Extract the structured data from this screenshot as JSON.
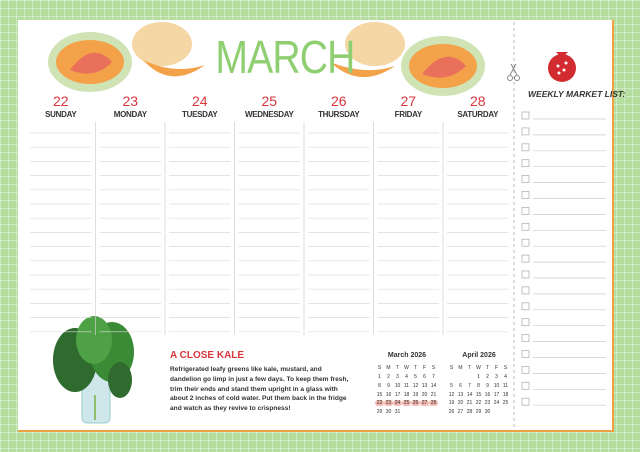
{
  "header": {
    "title": "MARCH"
  },
  "days": [
    {
      "date": 22,
      "name": "SUNDAY"
    },
    {
      "date": 23,
      "name": "MONDAY"
    },
    {
      "date": 24,
      "name": "TUESDAY"
    },
    {
      "date": 25,
      "name": "WEDNESDAY"
    },
    {
      "date": 26,
      "name": "THURSDAY"
    },
    {
      "date": 27,
      "name": "FRIDAY"
    },
    {
      "date": 28,
      "name": "SATURDAY"
    }
  ],
  "market_list": {
    "title": "WEEKLY MARKET LIST:"
  },
  "tip": {
    "title": "A CLOSE KALE",
    "lines": [
      "Refrigerated leafy greens like kale, mustard, and",
      "dandelion go limp in just a few days. To keep them fresh,",
      "trim their ends and stand them upright in a glass with",
      "about 2 inches of cold water. Put them back in the fridge",
      "and watch as they revive to crispness!"
    ]
  },
  "calendars": [
    {
      "title": "March 2026",
      "weekdays": [
        "S",
        "M",
        "T",
        "W",
        "T",
        "F",
        "S"
      ],
      "weeks": [
        [
          1,
          2,
          3,
          4,
          5,
          6,
          7
        ],
        [
          8,
          9,
          10,
          11,
          12,
          13,
          14
        ],
        [
          15,
          16,
          17,
          18,
          19,
          20,
          21
        ],
        [
          22,
          23,
          24,
          25,
          26,
          27,
          28
        ],
        [
          29,
          30,
          31
        ]
      ]
    },
    {
      "title": "April 2026",
      "weekdays": [
        "S",
        "M",
        "T",
        "W",
        "T",
        "F",
        "S"
      ],
      "weeks": [
        [
          null,
          null,
          null,
          1,
          2,
          3,
          4
        ],
        [
          5,
          6,
          7,
          8,
          9,
          10,
          11
        ],
        [
          12,
          13,
          14,
          15,
          16,
          17,
          18
        ],
        [
          19,
          20,
          21,
          22,
          23,
          24,
          25
        ],
        [
          26,
          27,
          28,
          29,
          30
        ]
      ]
    }
  ]
}
